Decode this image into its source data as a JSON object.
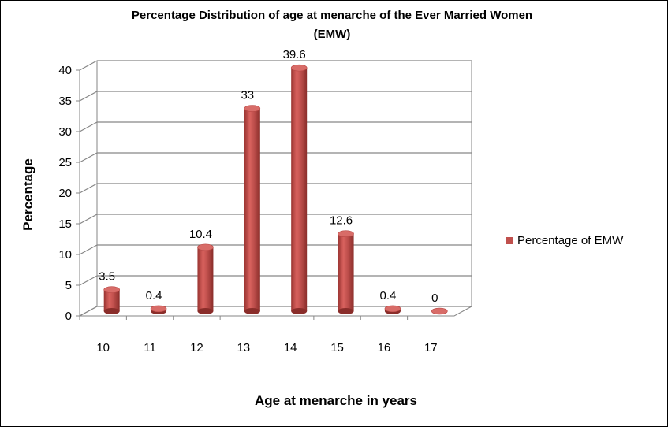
{
  "chart_data": {
    "type": "bar",
    "title_line1": "Percentage Distribution of age at menarche of the Ever Married Women",
    "title_line2": "(EMW)",
    "xlabel": "Age at menarche in years",
    "ylabel": "Percentage",
    "categories": [
      "10",
      "11",
      "12",
      "13",
      "14",
      "15",
      "16",
      "17"
    ],
    "series": [
      {
        "name": "Percentage of EMW",
        "values": [
          3.5,
          0.4,
          10.4,
          33,
          39.6,
          12.6,
          0.4,
          0
        ],
        "color": "#c0504d"
      }
    ],
    "data_labels": [
      "3.5",
      "0.4",
      "10.4",
      "33",
      "39.6",
      "12.6",
      "0.4",
      "0"
    ],
    "y_ticks": [
      "0",
      "5",
      "10",
      "15",
      "20",
      "25",
      "30",
      "35",
      "40"
    ],
    "ylim": [
      0,
      40
    ],
    "grid": true,
    "legend_position": "right",
    "style": "3d-cylinder"
  }
}
